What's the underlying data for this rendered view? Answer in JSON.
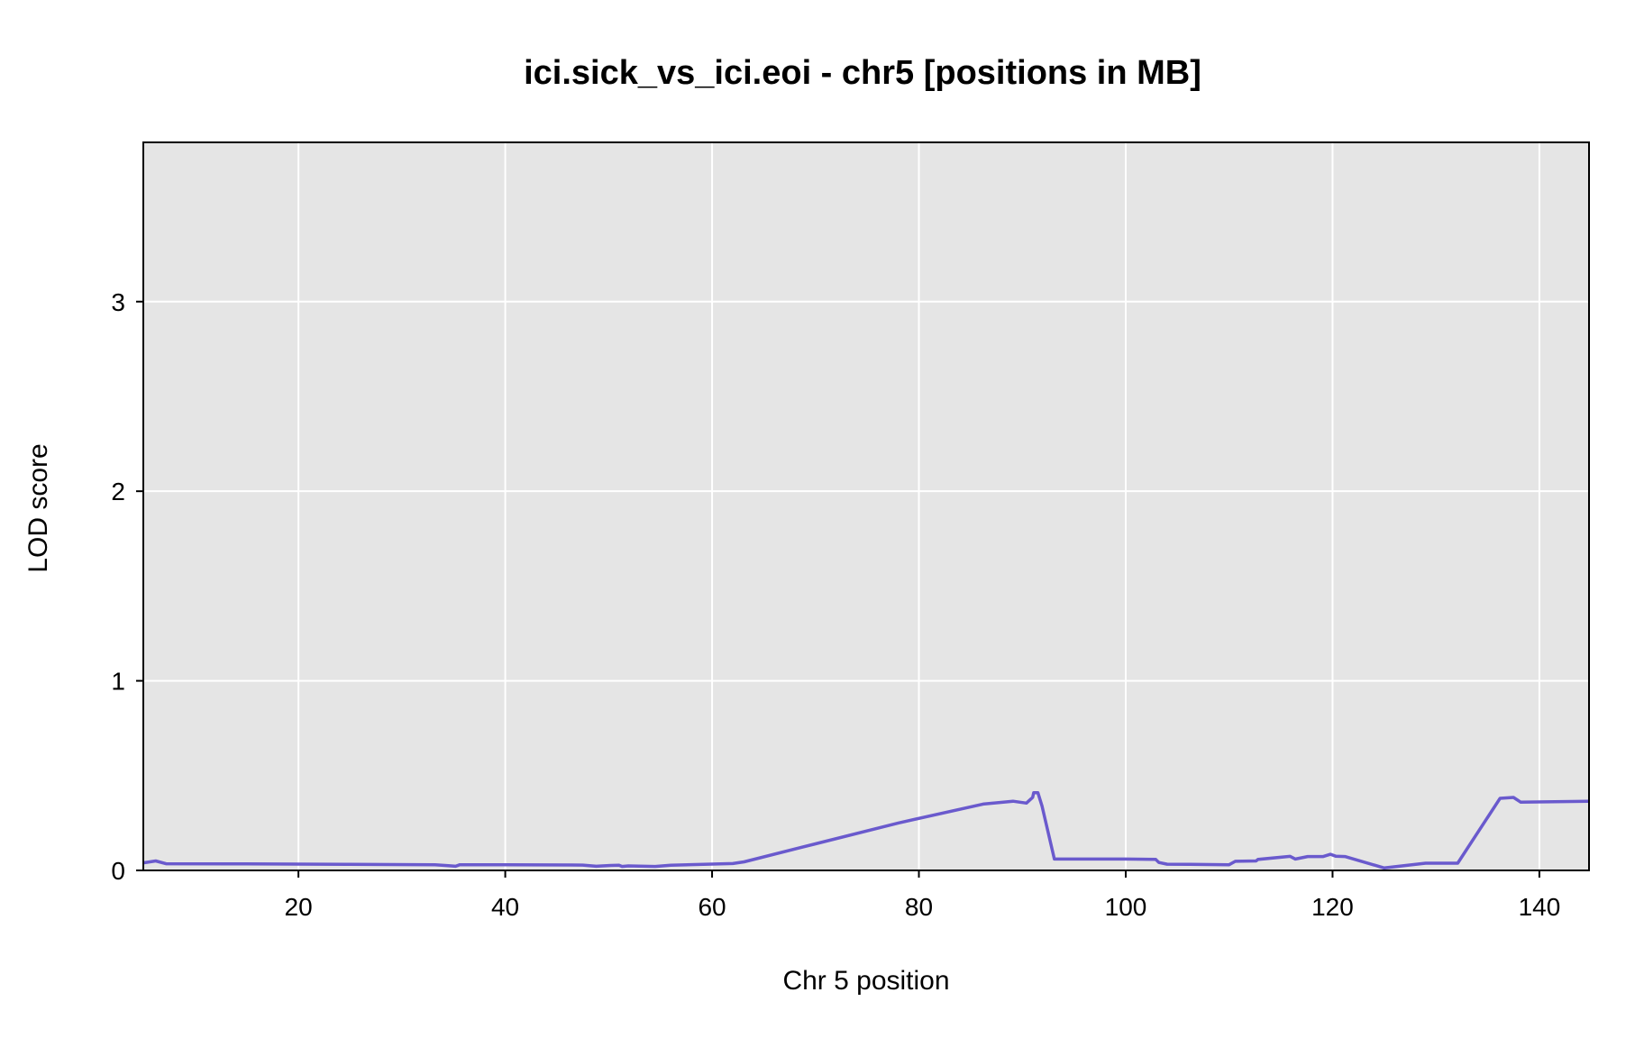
{
  "chart_data": {
    "type": "line",
    "title": "ici.sick_vs_ici.eoi - chr5 [positions in MB]",
    "xlabel": "Chr 5 position",
    "ylabel": "LOD score",
    "xlim": [
      5,
      144.8
    ],
    "ylim": [
      0,
      3.84
    ],
    "xticks": [
      20,
      40,
      60,
      80,
      100,
      120,
      140
    ],
    "yticks": [
      0,
      1,
      2,
      3
    ],
    "grid": true,
    "colors": {
      "background": "#e5e5e5",
      "grid": "#ffffff",
      "line": "#6a5acd",
      "border": "#000000",
      "baseline": "#00008b"
    },
    "series": [
      {
        "x": [
          5.0,
          6.2,
          7.2,
          15,
          25,
          33.2,
          34.5,
          35.2,
          35.6,
          40,
          47.5,
          48.8,
          50.2,
          51.0,
          51.3,
          51.9,
          54.5,
          56,
          62,
          63.1,
          70,
          78,
          86.2,
          89.1,
          90.4,
          91.0,
          91.1,
          91.5,
          91.9,
          93.1,
          100,
          102.9,
          103.2,
          104.0,
          106.2,
          110.0,
          110.6,
          112.6,
          112.8,
          115.9,
          116.4,
          117.6,
          119.1,
          119.8,
          120.3,
          121.2,
          125.0,
          129.0,
          132.1,
          136.2,
          137.5,
          138.2,
          144.8
        ],
        "y": [
          0.04,
          0.05,
          0.035,
          0.034,
          0.032,
          0.03,
          0.025,
          0.022,
          0.03,
          0.03,
          0.028,
          0.022,
          0.026,
          0.027,
          0.021,
          0.024,
          0.021,
          0.027,
          0.036,
          0.045,
          0.14,
          0.25,
          0.35,
          0.365,
          0.355,
          0.385,
          0.41,
          0.41,
          0.34,
          0.06,
          0.06,
          0.058,
          0.042,
          0.033,
          0.032,
          0.03,
          0.048,
          0.05,
          0.058,
          0.074,
          0.06,
          0.073,
          0.073,
          0.085,
          0.075,
          0.073,
          0.013,
          0.038,
          0.038,
          0.38,
          0.385,
          0.36,
          0.365
        ]
      }
    ]
  }
}
